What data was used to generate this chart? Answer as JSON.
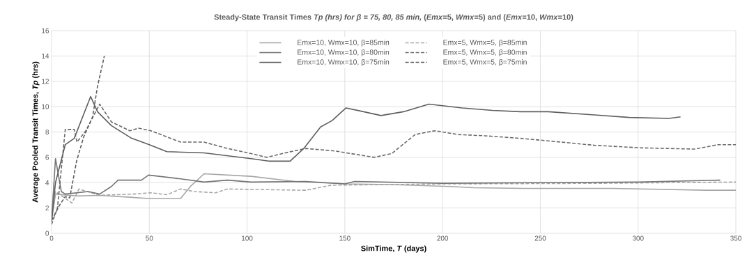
{
  "chart_data": {
    "type": "line",
    "title": "Steady-State Transit Times  *Tp (hrs) for  β = 75, 80, 85 min,*  (*Emx*=5, *Wmx*=5) and (*Emx*=10, *Wmx*=10)",
    "xlabel": "SimTime,  *T* (days)",
    "ylabel": "Average Pooled Transit Times,  *Tp* (hrs)",
    "xlim": [
      0,
      350
    ],
    "ylim": [
      0,
      16
    ],
    "xticks": [
      0,
      50,
      100,
      150,
      200,
      250,
      300,
      350
    ],
    "yticks": [
      0,
      2,
      4,
      6,
      8,
      10,
      12,
      14,
      16
    ],
    "grid": true,
    "legend": "top",
    "series": [
      {
        "name": "Emx=10, Wmx=10,  β=85min",
        "color": "#a6a6a6",
        "line_style": "solid",
        "x": [
          0,
          2,
          12.8,
          24.6,
          40,
          49.6,
          66,
          71,
          78,
          102,
          124.5,
          150.6,
          174,
          204,
          215.6,
          241,
          287,
          335,
          350
        ],
        "values": [
          1,
          3.1,
          2.95,
          3,
          2.85,
          2.75,
          2.75,
          3.7,
          4.7,
          4.5,
          4.1,
          3.9,
          3.85,
          3.7,
          3.6,
          3.55,
          3.55,
          3.4,
          3.4
        ]
      },
      {
        "name": "Emx=5, Wmx=5,  β=85min",
        "color": "#a6a6a6",
        "line_style": "dashed",
        "x": [
          0,
          2,
          10.4,
          14,
          24.6,
          42,
          50.8,
          59,
          66,
          73,
          84,
          90,
          130,
          143,
          200,
          280,
          350
        ],
        "values": [
          1,
          3.3,
          2.4,
          3.5,
          3,
          3.1,
          3.2,
          3.05,
          3.5,
          3.3,
          3.2,
          3.5,
          3.4,
          3.8,
          3.9,
          3.95,
          4.05
        ]
      },
      {
        "name": "Emx=10, Wmx=10,  β=80min",
        "color": "#747474",
        "line_style": "solid",
        "x": [
          0,
          2,
          5,
          7,
          18.7,
          24.6,
          30.6,
          34,
          46,
          49.6,
          66,
          78,
          90,
          102,
          130,
          150,
          155,
          200,
          250,
          300,
          342
        ],
        "values": [
          1,
          5.9,
          3.3,
          3.1,
          3.3,
          3.1,
          3.7,
          4.2,
          4.2,
          4.6,
          4.3,
          4.05,
          4.2,
          4.05,
          4.1,
          3.9,
          4.1,
          3.95,
          4,
          4.05,
          4.2
        ]
      },
      {
        "name": "Emx=5, Wmx=5,  β=80min",
        "color": "#6a6a6a",
        "line_style": "dashed",
        "x": [
          0,
          3,
          7,
          11.6,
          13,
          17.5,
          24.6,
          30.6,
          40,
          44.6,
          50.8,
          66,
          78,
          90,
          102,
          110,
          121,
          130,
          145,
          165,
          174,
          186,
          196,
          208,
          221.6,
          239.7,
          254,
          277.7,
          301,
          329,
          341,
          350
        ],
        "values": [
          0.7,
          2,
          8.2,
          8.2,
          7.2,
          8.1,
          10.2,
          8.8,
          8.1,
          8.3,
          8.1,
          7.2,
          7.2,
          6.7,
          6.3,
          6,
          6.4,
          6.7,
          6.5,
          6,
          6.3,
          7.8,
          8.1,
          7.8,
          7.7,
          7.5,
          7.3,
          6.95,
          6.75,
          6.65,
          7,
          7
        ]
      },
      {
        "name": "Emx=10, Wmx=10,  β=75min",
        "color": "#5e5e5e",
        "line_style": "solid",
        "x": [
          0,
          2,
          7,
          11.6,
          20,
          23.5,
          30.6,
          41,
          50,
          59,
          78,
          102,
          111,
          122,
          129,
          137.6,
          143.5,
          150.6,
          168.5,
          180,
          193,
          210,
          225.5,
          239.7,
          254,
          277.7,
          295.5,
          315.8,
          321.7
        ],
        "values": [
          0.9,
          4,
          7,
          7.5,
          10.8,
          9.6,
          8.5,
          7.5,
          7,
          6.45,
          6.35,
          5.9,
          5.7,
          5.7,
          6.7,
          8.4,
          8.9,
          9.9,
          9.3,
          9.6,
          10.2,
          9.9,
          9.7,
          9.6,
          9.6,
          9.35,
          9.15,
          9.07,
          9.2
        ]
      },
      {
        "name": "Emx=5, Wmx=5,  β=75min",
        "color": "#5e5e5e",
        "line_style": "dashed",
        "x": [
          0,
          4,
          7,
          9.3,
          12.8,
          16.4,
          21,
          23.5,
          27
        ],
        "values": [
          1,
          2.2,
          2.9,
          2.8,
          5.7,
          7.6,
          9.2,
          11.6,
          14
        ]
      }
    ]
  }
}
